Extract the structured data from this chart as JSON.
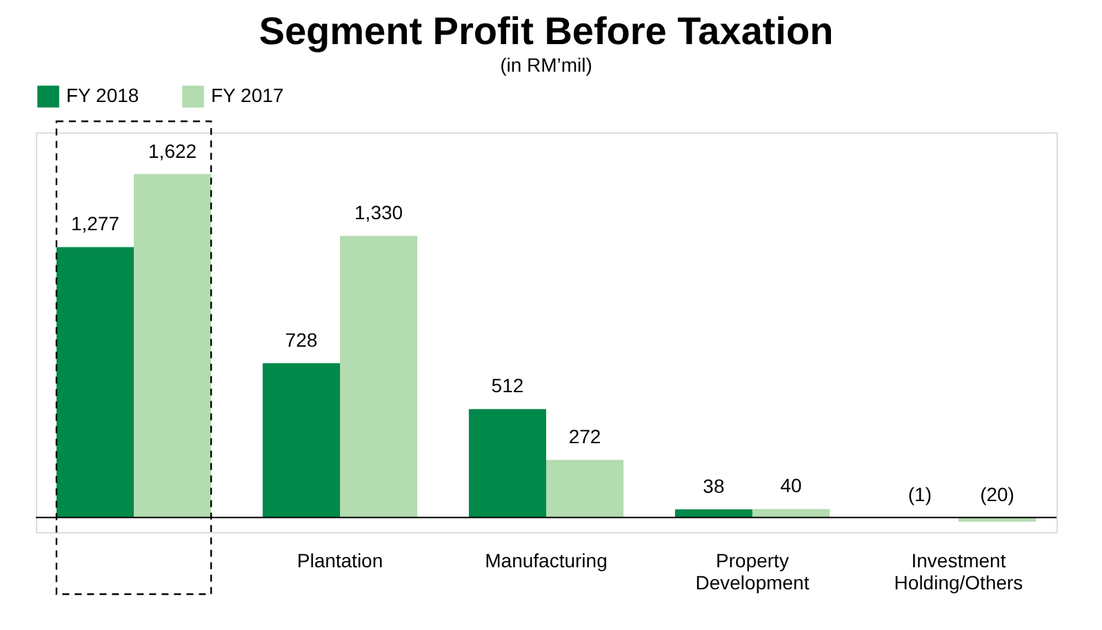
{
  "chart_data": {
    "type": "bar",
    "title": "Segment Profit Before Taxation",
    "subtitle": "(in RM’mil)",
    "categories": [
      null,
      "Plantation",
      "Manufacturing",
      "Property Development",
      "Investment Holding/Others"
    ],
    "series": [
      {
        "name": "FY 2018",
        "color": "#00894a",
        "values": [
          1277,
          728,
          512,
          38,
          -1
        ],
        "value_labels": [
          "1,277",
          "728",
          "512",
          "38",
          "(1)"
        ]
      },
      {
        "name": "FY 2017",
        "color": "#b3dcb0",
        "values": [
          1622,
          1330,
          272,
          40,
          -20
        ],
        "value_labels": [
          "1,622",
          "1,330",
          "272",
          "40",
          "(20)"
        ]
      }
    ],
    "legend": "top",
    "grid": false
  }
}
